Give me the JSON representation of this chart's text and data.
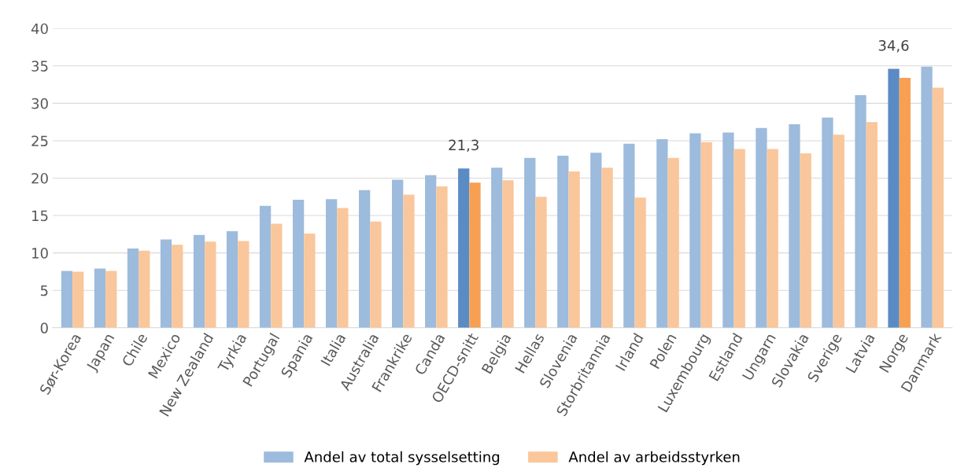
{
  "chart_data": {
    "type": "bar",
    "categories": [
      "Sør-Korea",
      "Japan",
      "Chile",
      "Mexico",
      "New Zealand",
      "Tyrkia",
      "Portugal",
      "Spania",
      "Italia",
      "Australia",
      "Frankrike",
      "Canda",
      "OECD-snitt",
      "Belgia",
      "Hellas",
      "Slovenia",
      "Storbritannia",
      "Irland",
      "Polen",
      "Luxembourg",
      "Estland",
      "Ungarn",
      "Slovakia",
      "Sverige",
      "Latvia",
      "Norge",
      "Danmark"
    ],
    "series": [
      {
        "name": "Andel av total sysselsetting",
        "color": "#9dbbdc",
        "colors": [
          "#9dbbdc",
          "#9dbbdc",
          "#9dbbdc",
          "#9dbbdc",
          "#9dbbdc",
          "#9dbbdc",
          "#9dbbdc",
          "#9dbbdc",
          "#9dbbdc",
          "#9dbbdc",
          "#9dbbdc",
          "#9dbbdc",
          "#5b8bc4",
          "#9dbbdc",
          "#9dbbdc",
          "#9dbbdc",
          "#9dbbdc",
          "#9dbbdc",
          "#9dbbdc",
          "#9dbbdc",
          "#9dbbdc",
          "#9dbbdc",
          "#9dbbdc",
          "#9dbbdc",
          "#9dbbdc",
          "#5b8bc4",
          "#9dbbdc"
        ],
        "values": [
          7.6,
          7.9,
          10.6,
          11.8,
          12.4,
          12.9,
          16.3,
          17.1,
          17.2,
          18.4,
          19.8,
          20.4,
          21.3,
          21.4,
          22.7,
          23.0,
          23.4,
          24.6,
          25.2,
          26.0,
          26.1,
          26.7,
          27.2,
          28.1,
          31.1,
          34.6,
          34.9
        ],
        "value_labels": [
          null,
          null,
          null,
          null,
          null,
          null,
          null,
          null,
          null,
          null,
          null,
          null,
          "21,3",
          null,
          null,
          null,
          null,
          null,
          null,
          null,
          null,
          null,
          null,
          null,
          null,
          "34,6",
          null
        ]
      },
      {
        "name": "Andel av arbeidsstyrken",
        "color": "#f9c79b",
        "colors": [
          "#f9c79b",
          "#f9c79b",
          "#f9c79b",
          "#f9c79b",
          "#f9c79b",
          "#f9c79b",
          "#f9c79b",
          "#f9c79b",
          "#f9c79b",
          "#f9c79b",
          "#f9c79b",
          "#f9c79b",
          "#f7a053",
          "#f9c79b",
          "#f9c79b",
          "#f9c79b",
          "#f9c79b",
          "#f9c79b",
          "#f9c79b",
          "#f9c79b",
          "#f9c79b",
          "#f9c79b",
          "#f9c79b",
          "#f9c79b",
          "#f9c79b",
          "#f7a053",
          "#f9c79b"
        ],
        "values": [
          7.5,
          7.6,
          10.3,
          11.1,
          11.5,
          11.6,
          13.9,
          12.6,
          16.0,
          14.2,
          17.8,
          18.9,
          19.4,
          19.7,
          17.5,
          20.9,
          21.4,
          17.4,
          22.7,
          24.8,
          23.9,
          23.9,
          23.3,
          25.8,
          27.5,
          33.4,
          32.1
        ]
      }
    ],
    "ylim": [
      0,
      40
    ],
    "yticks": [
      0,
      5,
      10,
      15,
      20,
      25,
      30,
      35,
      40
    ],
    "grid": "y",
    "legend": "bottom"
  }
}
